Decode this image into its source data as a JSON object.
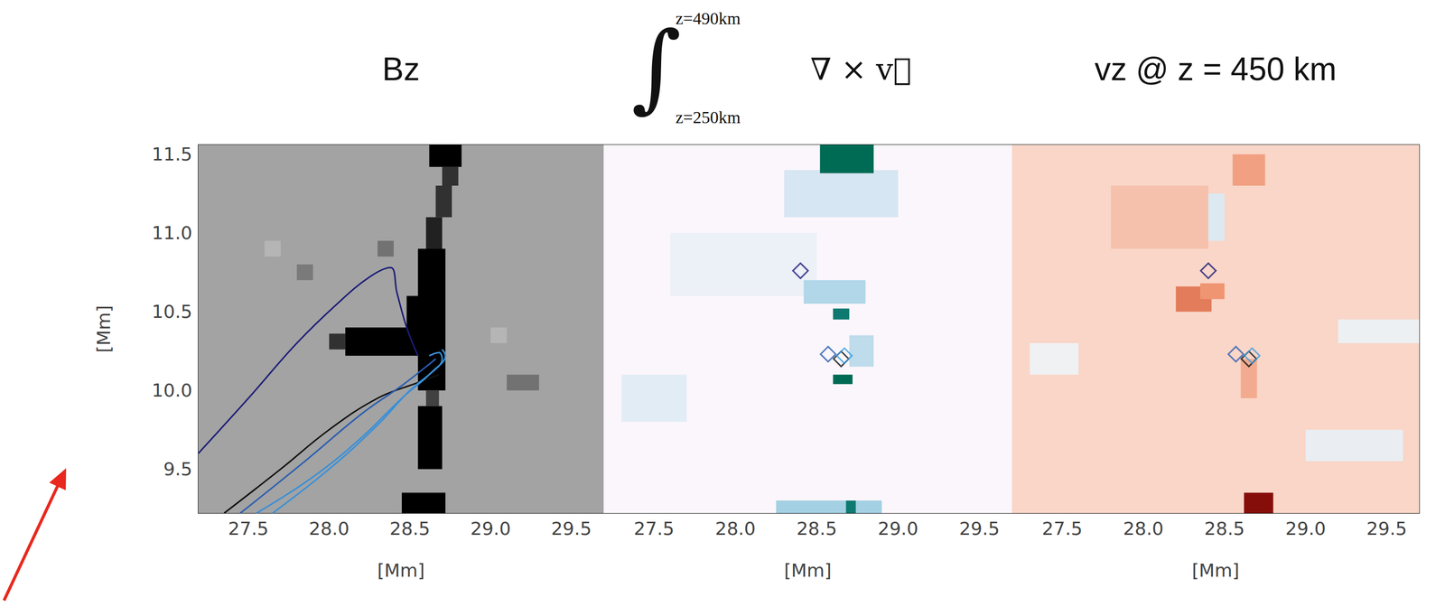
{
  "chart_data": [
    {
      "type": "heatmap",
      "title": "Bz",
      "xlabel": "[Mm]",
      "ylabel": "[Mm]",
      "xlim": [
        27.19,
        29.7
      ],
      "ylim": [
        9.22,
        11.56
      ],
      "xticks": [
        27.5,
        {
          "value": 28,
          "label": "28.0"
        },
        28.5,
        {
          "value": 29,
          "label": "29.0"
        },
        29.5
      ],
      "yticks": [
        9.5,
        {
          "value": 10,
          "label": "10.0"
        },
        10.5,
        {
          "value": 11,
          "label": "11.0"
        },
        11.5
      ],
      "color_range": [
        -1,
        1
      ],
      "cells": [
        [
          27.19,
          29.7,
          9.22,
          11.56,
          0
        ],
        [
          28.55,
          28.72,
          10.0,
          10.9,
          -1
        ],
        [
          28.1,
          28.6,
          10.22,
          10.4,
          -1
        ],
        [
          28.0,
          28.1,
          10.26,
          10.36,
          -0.7
        ],
        [
          28.48,
          28.58,
          10.4,
          10.6,
          -1
        ],
        [
          28.6,
          28.7,
          10.9,
          11.1,
          -0.8
        ],
        [
          28.66,
          28.76,
          11.1,
          11.3,
          -0.7
        ],
        [
          28.7,
          28.8,
          11.3,
          11.42,
          -0.7
        ],
        [
          28.62,
          28.82,
          11.42,
          11.56,
          -1
        ],
        [
          28.55,
          28.7,
          9.5,
          9.9,
          -1
        ],
        [
          28.6,
          28.68,
          9.9,
          10.0,
          -0.6
        ],
        [
          28.45,
          28.72,
          9.22,
          9.35,
          -1
        ],
        [
          28.3,
          28.4,
          10.85,
          10.95,
          -0.3
        ],
        [
          29.1,
          29.3,
          10.0,
          10.1,
          -0.3
        ],
        [
          27.8,
          27.9,
          10.7,
          10.8,
          -0.25
        ],
        [
          27.6,
          27.7,
          10.85,
          10.95,
          0.2
        ],
        [
          29.0,
          29.1,
          10.3,
          10.4,
          0.2
        ]
      ],
      "series": [
        {
          "type": "line",
          "color": "#1c1c78",
          "x": [
            27.19,
            27.5,
            27.8,
            28.05,
            28.25,
            28.38,
            28.42,
            28.48,
            28.55
          ],
          "y": [
            9.6,
            9.95,
            10.3,
            10.55,
            10.72,
            10.78,
            10.62,
            10.4,
            10.22
          ]
        },
        {
          "type": "line",
          "color": "#111111",
          "x": [
            27.35,
            27.7,
            28.0,
            28.3,
            28.55,
            28.68
          ],
          "y": [
            9.22,
            9.5,
            9.75,
            9.95,
            10.05,
            10.1
          ]
        },
        {
          "type": "line",
          "color": "#2a5db0",
          "x": [
            27.45,
            27.85,
            28.2,
            28.45,
            28.6,
            28.66
          ],
          "y": [
            9.22,
            9.55,
            9.85,
            10.03,
            10.15,
            10.2
          ]
        },
        {
          "type": "line",
          "color": "#3a8fd8",
          "x": [
            27.55,
            27.9,
            28.2,
            28.45,
            28.62,
            28.7,
            28.68,
            28.62
          ],
          "y": [
            9.22,
            9.45,
            9.7,
            9.95,
            10.1,
            10.2,
            10.24,
            10.22
          ]
        },
        {
          "type": "line",
          "color": "#3a8fd8",
          "x": [
            27.65,
            28.0,
            28.3,
            28.5,
            28.64,
            28.72,
            28.7
          ],
          "y": [
            9.22,
            9.5,
            9.78,
            10.0,
            10.12,
            10.22,
            10.26
          ]
        }
      ]
    },
    {
      "type": "heatmap",
      "title": {
        "symbol": "∫",
        "upper": "z=490km",
        "lower": "z=250km",
        "integrand": "∇ × v⃗"
      },
      "xlabel": "[Mm]",
      "tick_labels": "x",
      "xlim": [
        27.19,
        29.7
      ],
      "ylim": [
        9.22,
        11.56
      ],
      "xticks": [
        27.5,
        {
          "value": 28,
          "label": "28.0"
        },
        28.5,
        {
          "value": 29,
          "label": "29.0"
        },
        29.5
      ],
      "yticks": [
        9.5,
        {
          "value": 10,
          "label": "10.0"
        },
        10.5,
        {
          "value": 11,
          "label": "11.0"
        },
        11.5
      ],
      "color_range": [
        0,
        1
      ],
      "cells": [
        [
          27.19,
          29.7,
          9.22,
          11.56,
          0
        ],
        [
          27.6,
          28.5,
          10.6,
          11.0,
          0.06
        ],
        [
          28.3,
          29.0,
          11.1,
          11.4,
          0.15
        ],
        [
          27.3,
          27.7,
          9.8,
          10.1,
          0.1
        ],
        [
          28.52,
          28.85,
          11.38,
          11.56,
          1
        ],
        [
          28.42,
          28.8,
          10.55,
          10.7,
          0.3
        ],
        [
          28.6,
          28.7,
          10.45,
          10.52,
          0.9
        ],
        [
          28.6,
          28.72,
          10.04,
          10.1,
          1
        ],
        [
          28.7,
          28.85,
          10.15,
          10.35,
          0.25
        ],
        [
          28.25,
          28.9,
          9.22,
          9.3,
          0.35
        ],
        [
          28.68,
          28.74,
          9.22,
          9.3,
          0.9
        ]
      ],
      "series": [
        {
          "type": "scatter",
          "marker": "diamond",
          "x": [
            28.4,
            28.57,
            28.65,
            28.67
          ],
          "y": [
            10.76,
            10.23,
            10.2,
            10.22
          ],
          "colors": [
            "#1c1c78",
            "#2a5db0",
            "#111111",
            "#3a9ee0"
          ]
        }
      ]
    },
    {
      "type": "heatmap",
      "title": "vz @ z = 450 km",
      "xlabel": "[Mm]",
      "tick_labels": "x",
      "xlim": [
        27.19,
        29.7
      ],
      "ylim": [
        9.22,
        11.56
      ],
      "xticks": [
        27.5,
        {
          "value": 28,
          "label": "28.0"
        },
        28.5,
        {
          "value": 29,
          "label": "29.0"
        },
        29.5
      ],
      "yticks": [
        9.5,
        {
          "value": 10,
          "label": "10.0"
        },
        10.5,
        {
          "value": 11,
          "label": "11.0"
        },
        11.5
      ],
      "color_range": [
        -1,
        1
      ],
      "cells": [
        [
          27.19,
          29.7,
          9.22,
          11.56,
          0.15
        ],
        [
          27.8,
          28.4,
          10.9,
          11.3,
          0.25
        ],
        [
          28.2,
          28.42,
          10.5,
          10.66,
          0.55
        ],
        [
          28.35,
          28.5,
          10.58,
          10.68,
          0.45
        ],
        [
          28.55,
          28.75,
          11.3,
          11.5,
          0.4
        ],
        [
          28.4,
          28.5,
          10.95,
          11.25,
          -0.25
        ],
        [
          28.62,
          28.8,
          9.22,
          9.35,
          0.95
        ],
        [
          28.6,
          28.7,
          9.95,
          10.2,
          0.35
        ],
        [
          29.0,
          29.6,
          9.55,
          9.75,
          -0.15
        ],
        [
          29.2,
          29.7,
          10.3,
          10.45,
          -0.12
        ],
        [
          27.3,
          27.6,
          10.1,
          10.3,
          -0.1
        ]
      ],
      "series": [
        {
          "type": "scatter",
          "marker": "diamond",
          "x": [
            28.4,
            28.57,
            28.65,
            28.67
          ],
          "y": [
            10.76,
            10.23,
            10.2,
            10.22
          ],
          "colors": [
            "#1c1c78",
            "#2a5db0",
            "#111111",
            "#3a9ee0"
          ]
        }
      ]
    }
  ]
}
